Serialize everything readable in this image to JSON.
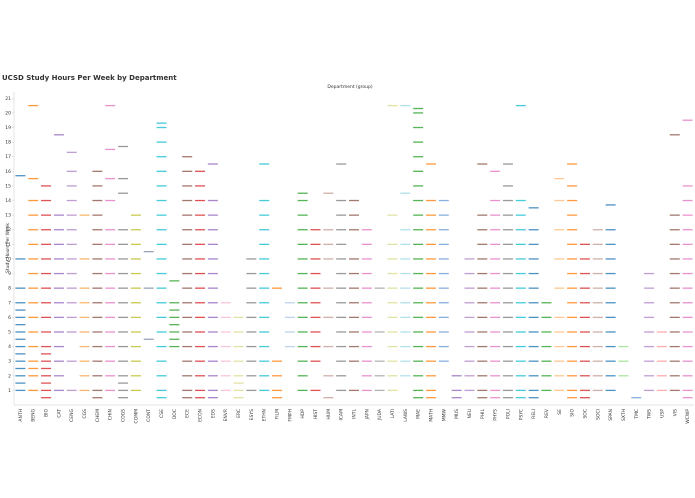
{
  "chart_data": {
    "type": "strip",
    "title": "UCSD Study Hours Per Week by Department",
    "x_label": "Department (group)",
    "y_label": "Study Hours Per Week",
    "ylim": [
      0,
      21.5
    ],
    "yticks": [
      1,
      2,
      3,
      4,
      5,
      6,
      7,
      8,
      9,
      10,
      11,
      12,
      13,
      14,
      15,
      16,
      17,
      18,
      19,
      20,
      21
    ],
    "series": [
      {
        "name": "ANTH",
        "color": "#1f77b4",
        "values": [
          1,
          1.5,
          2,
          2.5,
          3,
          3.5,
          4,
          4.5,
          5,
          5.5,
          6,
          6.5,
          7,
          8,
          10,
          15.7
        ]
      },
      {
        "name": "BENG",
        "color": "#ff7f0e",
        "values": [
          1,
          2,
          2.5,
          3,
          4,
          5,
          6,
          7,
          8,
          9,
          10,
          11,
          12,
          13,
          14,
          15.5,
          20.5
        ]
      },
      {
        "name": "BIO",
        "color": "#d62728",
        "values": [
          0.5,
          1,
          1.5,
          2,
          2.5,
          3,
          3.5,
          4,
          5,
          6,
          7,
          8,
          9,
          10,
          11,
          12,
          13,
          14,
          15
        ]
      },
      {
        "name": "CAT",
        "color": "#9467bd",
        "values": [
          1,
          2,
          3,
          4,
          5,
          6,
          7,
          8,
          9,
          10,
          11,
          12,
          13,
          18.5
        ]
      },
      {
        "name": "CENG",
        "color": "#b084c8",
        "values": [
          1,
          3,
          5,
          6,
          7,
          8,
          9,
          10,
          11,
          12,
          13,
          14,
          15,
          16,
          17.3
        ]
      },
      {
        "name": "CGS",
        "color": "#f5a54a",
        "values": [
          1,
          2,
          3,
          4,
          5,
          6,
          7,
          8,
          10,
          13
        ]
      },
      {
        "name": "CHEM",
        "color": "#8c564b",
        "values": [
          0.5,
          1,
          2,
          3,
          4,
          5,
          6,
          7,
          8,
          9,
          10,
          11,
          12,
          13,
          14,
          15,
          16
        ]
      },
      {
        "name": "CHIN",
        "color": "#e377c2",
        "values": [
          1,
          2,
          3,
          4,
          5,
          6,
          7,
          8,
          9,
          10,
          11,
          12,
          14,
          15.5,
          17.5,
          20.5
        ]
      },
      {
        "name": "COGS",
        "color": "#7f7f7f",
        "values": [
          0.5,
          1,
          1.5,
          2,
          3,
          4,
          5,
          6,
          7,
          8,
          9,
          10,
          11,
          12,
          14.5,
          15.5,
          17.7
        ]
      },
      {
        "name": "COMM",
        "color": "#bcbd22",
        "values": [
          1,
          2,
          3,
          4,
          5,
          6,
          7,
          8,
          9,
          10,
          11,
          12,
          13
        ]
      },
      {
        "name": "CONT",
        "color": "#7f8fa6",
        "values": [
          4.5,
          8,
          10.5
        ]
      },
      {
        "name": "CSE",
        "color": "#17becf",
        "values": [
          0.5,
          1,
          2,
          3,
          4,
          5,
          6,
          7,
          8,
          9,
          10,
          11,
          12,
          13,
          14,
          15,
          16,
          17,
          18,
          19,
          19.3
        ]
      },
      {
        "name": "DOC",
        "color": "#2ca02c",
        "values": [
          4,
          4.5,
          5,
          5.5,
          6,
          6.5,
          7,
          8.5
        ]
      },
      {
        "name": "ECE",
        "color": "#8c564b",
        "values": [
          0.5,
          1,
          2,
          3,
          4,
          5,
          6,
          7,
          8,
          9,
          10,
          11,
          12,
          13,
          14,
          15,
          16,
          17
        ]
      },
      {
        "name": "ECON",
        "color": "#d62728",
        "values": [
          0.5,
          1,
          2,
          3,
          4,
          5,
          6,
          7,
          8,
          9,
          10,
          11,
          12,
          13,
          14,
          15,
          16
        ]
      },
      {
        "name": "EDS",
        "color": "#9467bd",
        "values": [
          0.5,
          1,
          2,
          3,
          4,
          5,
          6,
          7,
          8,
          9,
          10,
          11,
          12,
          13,
          14,
          16.5
        ]
      },
      {
        "name": "ENVR",
        "color": "#f7b6d2",
        "values": [
          1,
          2,
          3,
          4,
          5,
          6,
          7
        ]
      },
      {
        "name": "ERC",
        "color": "#dbdb8d",
        "values": [
          0.5,
          1,
          1.5,
          2,
          3,
          4,
          5,
          6
        ]
      },
      {
        "name": "ESYS",
        "color": "#7f7f7f",
        "values": [
          1,
          2,
          3,
          4,
          5,
          6,
          7,
          8,
          9,
          10
        ]
      },
      {
        "name": "ETHN",
        "color": "#17becf",
        "values": [
          1,
          2,
          3,
          4,
          5,
          6,
          7,
          8,
          9,
          10,
          11,
          12,
          13,
          14,
          16.5
        ]
      },
      {
        "name": "FILM",
        "color": "#ff7f0e",
        "values": [
          0.5,
          1,
          2,
          3,
          8
        ]
      },
      {
        "name": "FMPH",
        "color": "#aec7e8",
        "values": [
          4,
          5,
          6,
          7
        ]
      },
      {
        "name": "HDP",
        "color": "#2ca02c",
        "values": [
          1,
          2,
          3,
          4,
          5,
          6,
          7,
          8,
          9,
          10,
          11,
          12,
          13,
          14,
          14.5
        ]
      },
      {
        "name": "HIST",
        "color": "#d62728",
        "values": [
          1,
          3,
          4,
          5,
          6,
          7,
          8,
          9,
          10,
          11,
          12
        ]
      },
      {
        "name": "HUM",
        "color": "#c49c94",
        "values": [
          0.5,
          2,
          4,
          6,
          8,
          10,
          11,
          12,
          14.5
        ]
      },
      {
        "name": "ICAM",
        "color": "#7f7f7f",
        "values": [
          1,
          2,
          3,
          4,
          5,
          6,
          7,
          8,
          9,
          10,
          11,
          12,
          13,
          14,
          16.5
        ]
      },
      {
        "name": "INTL",
        "color": "#8c564b",
        "values": [
          1,
          3,
          4,
          5,
          6,
          7,
          8,
          9,
          10,
          12,
          13,
          14
        ]
      },
      {
        "name": "JAPN",
        "color": "#e377c2",
        "values": [
          1,
          2,
          3,
          4,
          5,
          6,
          7,
          8,
          9,
          10,
          11,
          12
        ]
      },
      {
        "name": "JUDA",
        "color": "#a0a0a0",
        "values": [
          1,
          2,
          3,
          5,
          8
        ]
      },
      {
        "name": "LATI",
        "color": "#dbdb8d",
        "values": [
          1,
          2,
          3,
          4,
          5,
          6,
          7,
          8,
          9,
          10,
          11,
          13,
          20.5
        ]
      },
      {
        "name": "LAWS",
        "color": "#9edae5",
        "values": [
          2,
          3,
          4,
          5,
          6,
          7,
          8,
          9,
          10,
          11,
          12,
          14.5,
          20.5
        ]
      },
      {
        "name": "MAE",
        "color": "#2ca02c",
        "values": [
          0.5,
          1,
          2,
          3,
          4,
          5,
          6,
          7,
          8,
          9,
          10,
          11,
          12,
          13,
          14,
          15,
          16,
          17,
          18,
          19,
          20,
          20.3
        ]
      },
      {
        "name": "MATH",
        "color": "#ff7f0e",
        "values": [
          0.5,
          1,
          2,
          3,
          4,
          5,
          6,
          7,
          8,
          9,
          10,
          11,
          12,
          13,
          14,
          16.5
        ]
      },
      {
        "name": "MMW",
        "color": "#6c9bd2",
        "values": [
          3,
          4,
          5,
          6,
          7,
          8,
          9,
          10,
          11,
          12,
          13,
          14
        ]
      },
      {
        "name": "MUS",
        "color": "#9467bd",
        "values": [
          0.5,
          1,
          2
        ]
      },
      {
        "name": "NEU",
        "color": "#b084c8",
        "values": [
          1,
          2,
          3,
          4,
          5,
          6,
          7,
          8,
          9,
          10
        ]
      },
      {
        "name": "PHIL",
        "color": "#8c564b",
        "values": [
          0.5,
          1,
          2,
          3,
          4,
          5,
          6,
          7,
          8,
          9,
          10,
          11,
          12,
          13,
          16.5
        ]
      },
      {
        "name": "PHYS",
        "color": "#e377c2",
        "values": [
          0.5,
          1,
          2,
          3,
          4,
          5,
          6,
          7,
          8,
          9,
          10,
          11,
          12,
          13,
          14,
          16
        ]
      },
      {
        "name": "POLI",
        "color": "#7f7f7f",
        "values": [
          0.5,
          1,
          2,
          3,
          4,
          5,
          6,
          7,
          8,
          9,
          10,
          11,
          12,
          13,
          14,
          15,
          16.5
        ]
      },
      {
        "name": "PSYC",
        "color": "#17becf",
        "values": [
          0.5,
          1,
          2,
          3,
          4,
          5,
          6,
          7,
          8,
          9,
          10,
          11,
          12,
          13,
          14,
          20.5
        ]
      },
      {
        "name": "RELI",
        "color": "#1f77b4",
        "values": [
          0.5,
          1,
          2,
          3,
          4,
          5,
          6,
          7,
          8,
          9,
          10,
          11,
          12,
          13.5
        ]
      },
      {
        "name": "REV",
        "color": "#2ca02c",
        "values": [
          1,
          2,
          3,
          4,
          5,
          6,
          7
        ]
      },
      {
        "name": "SE",
        "color": "#ffbb78",
        "values": [
          1,
          2,
          3,
          4,
          5,
          6,
          8,
          10,
          12,
          14,
          15.5
        ]
      },
      {
        "name": "SIO",
        "color": "#ff7f0e",
        "values": [
          0.5,
          1,
          2,
          3,
          4,
          5,
          6,
          7,
          8,
          9,
          10,
          11,
          12,
          13,
          14,
          15,
          16.5
        ]
      },
      {
        "name": "SOC",
        "color": "#d62728",
        "values": [
          0.5,
          1,
          2,
          3,
          4,
          5,
          6,
          7,
          8,
          9,
          10,
          11
        ]
      },
      {
        "name": "SOCI",
        "color": "#c49c94",
        "values": [
          1,
          2,
          3,
          4,
          5,
          6,
          7,
          8,
          9,
          10,
          11,
          12
        ]
      },
      {
        "name": "SPAN",
        "color": "#1f77b4",
        "values": [
          1,
          2,
          3,
          4,
          5,
          6,
          7,
          8,
          9,
          10,
          11,
          12,
          13.7
        ]
      },
      {
        "name": "SXTH",
        "color": "#98df8a",
        "values": [
          2,
          3,
          4
        ]
      },
      {
        "name": "TMC",
        "color": "#6c9bd2",
        "values": [
          0.5
        ]
      },
      {
        "name": "TWS",
        "color": "#b084c8",
        "values": [
          1,
          2,
          3,
          4,
          5,
          6,
          7,
          8,
          9
        ]
      },
      {
        "name": "USP",
        "color": "#ff9896",
        "values": [
          1,
          2,
          3,
          4,
          5
        ]
      },
      {
        "name": "VIS",
        "color": "#8c564b",
        "values": [
          1,
          2,
          3,
          4,
          5,
          6,
          7,
          8,
          9,
          10,
          11,
          12,
          13,
          18.5
        ]
      },
      {
        "name": "WCWP",
        "color": "#e377c2",
        "values": [
          0.5,
          1,
          2,
          3,
          4,
          5,
          6,
          7,
          8,
          9,
          10,
          11,
          12,
          13,
          14,
          15,
          19.5
        ]
      }
    ]
  }
}
